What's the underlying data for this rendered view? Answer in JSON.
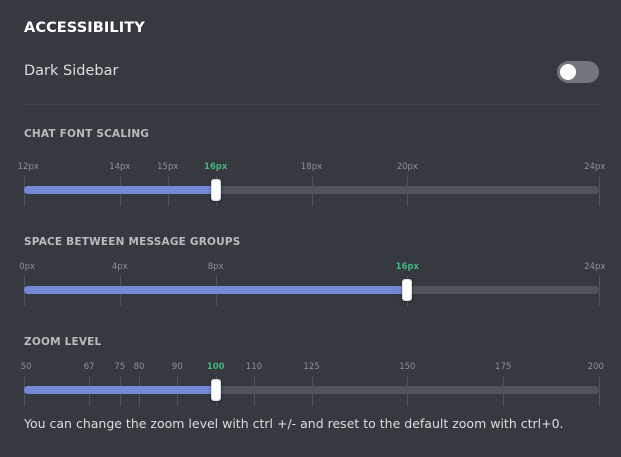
{
  "accessibility": {
    "title": "ACCESSIBILITY",
    "dark_sidebar": {
      "label": "Dark Sidebar",
      "enabled": false
    }
  },
  "sliders": [
    {
      "id": "chat-font-scaling",
      "title": "CHAT FONT SCALING",
      "min": 12,
      "max": 24,
      "value": 16,
      "ticks": [
        {
          "value": 12,
          "label": "12px"
        },
        {
          "value": 14,
          "label": "14px"
        },
        {
          "value": 15,
          "label": "15px"
        },
        {
          "value": 16,
          "label": "16px"
        },
        {
          "value": 18,
          "label": "18px"
        },
        {
          "value": 20,
          "label": "20px"
        },
        {
          "value": 24,
          "label": "24px"
        }
      ]
    },
    {
      "id": "space-between-message-groups",
      "title": "SPACE BETWEEN MESSAGE GROUPS",
      "min": 0,
      "max": 24,
      "value": 16,
      "ticks": [
        {
          "value": 0,
          "label": "0px"
        },
        {
          "value": 4,
          "label": "4px"
        },
        {
          "value": 8,
          "label": "8px"
        },
        {
          "value": 16,
          "label": "16px"
        },
        {
          "value": 24,
          "label": "24px"
        }
      ]
    },
    {
      "id": "zoom-level",
      "title": "ZOOM LEVEL",
      "min": 50,
      "max": 200,
      "value": 100,
      "ticks": [
        {
          "value": 50,
          "label": "50"
        },
        {
          "value": 67,
          "label": "67"
        },
        {
          "value": 75,
          "label": "75"
        },
        {
          "value": 80,
          "label": "80"
        },
        {
          "value": 90,
          "label": "90"
        },
        {
          "value": 100,
          "label": "100"
        },
        {
          "value": 110,
          "label": "110"
        },
        {
          "value": 125,
          "label": "125"
        },
        {
          "value": 150,
          "label": "150"
        },
        {
          "value": 175,
          "label": "175"
        },
        {
          "value": 200,
          "label": "200"
        }
      ]
    }
  ],
  "zoom_hint": "You can change the zoom level with ctrl +/- and reset to the default zoom with ctrl+0.",
  "colors": {
    "background": "#36393f",
    "fill": "#7289da",
    "track": "#4f545c",
    "active_label": "#43b581"
  }
}
